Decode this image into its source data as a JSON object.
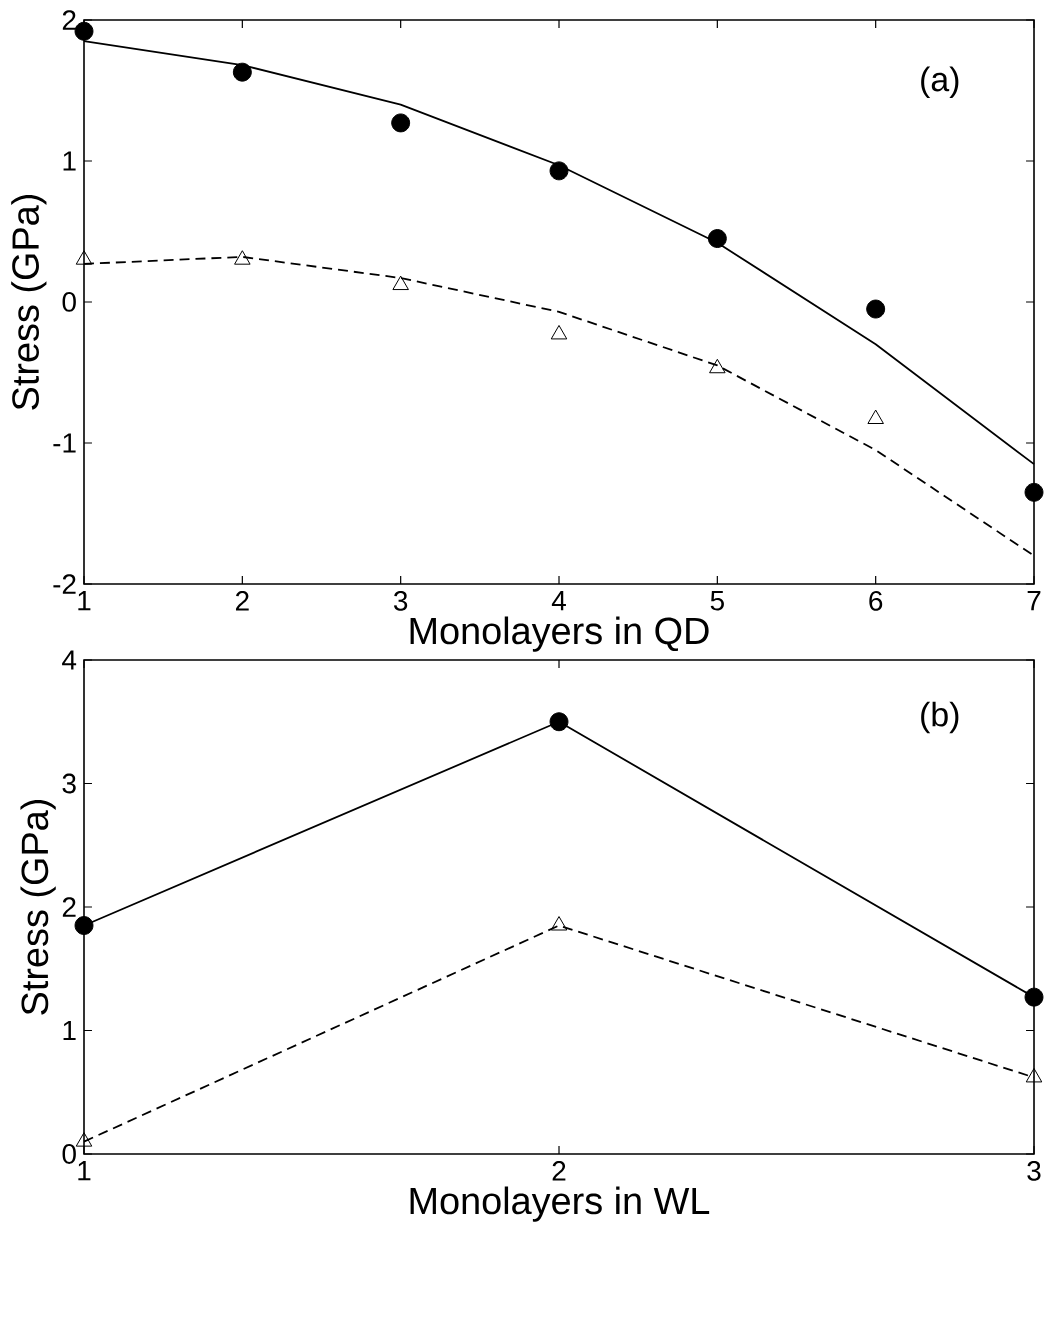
{
  "chart_data": [
    {
      "type": "line",
      "xlabel": "Monolayers in QD",
      "ylabel": "Stress (GPa)",
      "x": [
        1,
        2,
        3,
        4,
        5,
        6,
        7
      ],
      "xlim": [
        1,
        7
      ],
      "ylim": [
        -2,
        2
      ],
      "xticks": [
        1,
        2,
        3,
        4,
        5,
        6,
        7
      ],
      "yticks": [
        -2,
        -1,
        0,
        1,
        2
      ],
      "annotations": [
        "(a)"
      ],
      "series": [
        {
          "type": "scatter",
          "marker": "circle",
          "color": "#000000",
          "values": [
            1.92,
            1.63,
            1.27,
            0.93,
            0.45,
            -0.05,
            -1.35
          ]
        },
        {
          "line_style": "solid",
          "color": "#000000",
          "values": [
            1.85,
            1.68,
            1.4,
            0.97,
            0.42,
            -0.3,
            -1.15
          ]
        },
        {
          "type": "scatter",
          "marker": "triangle",
          "color": "#000000",
          "values": [
            0.3,
            0.3,
            0.12,
            -0.23,
            -0.47,
            -0.83,
            null
          ]
        },
        {
          "line_style": "dashed",
          "color": "#000000",
          "values": [
            0.27,
            0.32,
            0.17,
            -0.07,
            -0.45,
            -1.05,
            -1.8
          ]
        }
      ]
    },
    {
      "type": "line",
      "xlabel": "Monolayers in WL",
      "ylabel": "Stress (GPa)",
      "x": [
        1,
        2,
        3
      ],
      "xlim": [
        1,
        3
      ],
      "ylim": [
        0,
        4
      ],
      "xticks": [
        1,
        2,
        3
      ],
      "yticks": [
        0,
        1,
        2,
        3,
        4
      ],
      "annotations": [
        "(b)"
      ],
      "series": [
        {
          "marker": "circle",
          "line_style": "solid",
          "color": "#000000",
          "values": [
            1.85,
            3.5,
            1.27
          ]
        },
        {
          "marker": "triangle",
          "line_style": "dashed",
          "color": "#000000",
          "values": [
            0.1,
            1.85,
            0.62
          ]
        }
      ]
    }
  ]
}
